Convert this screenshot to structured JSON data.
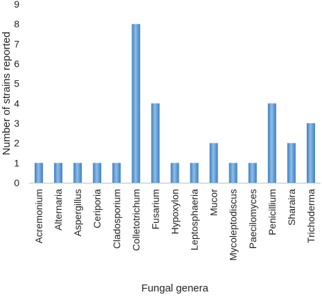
{
  "chart_data": {
    "type": "bar",
    "categories": [
      "Acremonium",
      "Alternaria",
      "Aspergillus",
      "Ceriporia",
      "Cladosporium",
      "Colletotrichum",
      "Fusarium",
      "Hypoxylon",
      "Leptosphaeria",
      "Mucor",
      "Mycoleptodiscus",
      "Paecilomyces",
      "Penicillium",
      "Sharaira",
      "Trichoderma"
    ],
    "values": [
      1,
      1,
      1,
      1,
      1,
      8,
      4,
      1,
      1,
      2,
      1,
      1,
      4,
      2,
      3
    ],
    "title": "",
    "xlabel": "Fungal genera",
    "ylabel": "Number of strains reported",
    "ylim": [
      0,
      9
    ],
    "yticks": [
      0,
      1,
      2,
      3,
      4,
      5,
      6,
      7,
      8,
      9
    ],
    "grid": false,
    "legend": "none",
    "colors": {
      "bar_light": "#8fbde6",
      "bar_mid": "#5b9bd5",
      "bar_dark": "#3c7fc2",
      "axis": "#bfbfbf"
    }
  }
}
